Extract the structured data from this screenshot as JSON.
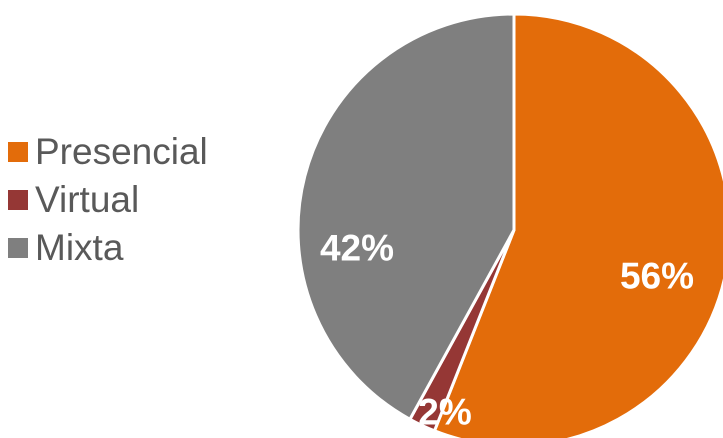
{
  "chart_data": {
    "type": "pie",
    "categories": [
      "Presencial",
      "Virtual",
      "Mixta"
    ],
    "values": [
      56,
      2,
      42
    ],
    "labels": [
      "56%",
      "2%",
      "42%"
    ],
    "colors": [
      "#E36C0A",
      "#953735",
      "#7F7F7F"
    ],
    "legend_position": "left",
    "start_angle_deg": 0,
    "direction": "clockwise"
  }
}
